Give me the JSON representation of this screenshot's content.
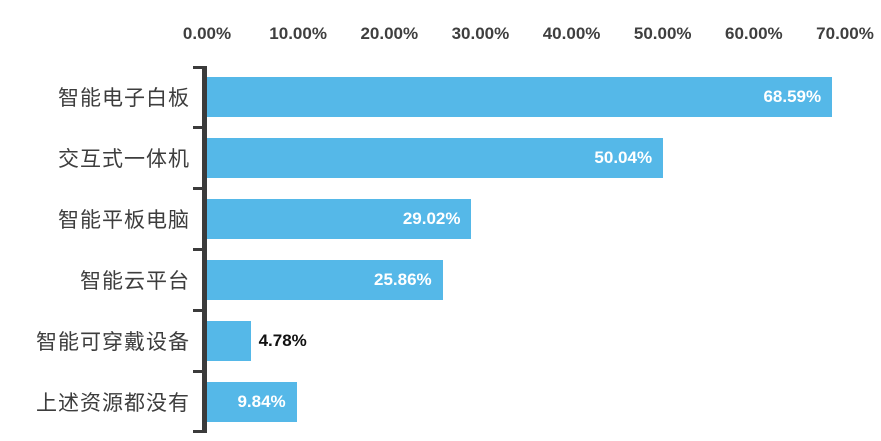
{
  "chart_data": {
    "type": "bar",
    "orientation": "horizontal",
    "title": "",
    "xlabel": "",
    "ylabel": "",
    "xlim": [
      0,
      70
    ],
    "grid": false,
    "legend": "none",
    "x_ticks": [
      "0.00%",
      "10.00%",
      "20.00%",
      "30.00%",
      "40.00%",
      "50.00%",
      "60.00%",
      "70.00%"
    ],
    "categories": [
      "智能电子白板",
      "交互式一体机",
      "智能平板电脑",
      "智能云平台",
      "智能可穿戴设备",
      "上述资源都没有"
    ],
    "values": [
      68.59,
      50.04,
      29.02,
      25.86,
      4.78,
      9.84
    ],
    "data_labels": [
      "68.59%",
      "50.04%",
      "29.02%",
      "25.86%",
      "4.78%",
      "9.84%"
    ],
    "outside_label_indices": [
      4
    ],
    "colors": {
      "bar": "#55B8E8",
      "axis": "#3B3B3B",
      "tick_text": "#3F3F3F",
      "category_text": "#3D3D3D",
      "label_inside": "#FFFFFF",
      "label_outside": "#111111",
      "background": "#FFFFFF"
    }
  }
}
